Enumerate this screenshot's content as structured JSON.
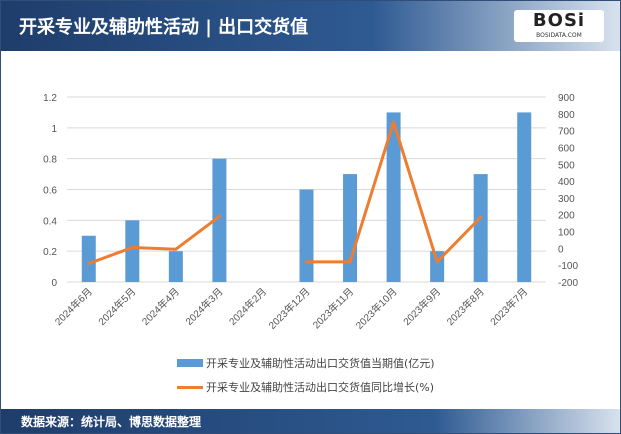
{
  "title": "开采专业及辅助性活动 | 出口交货值",
  "logo": {
    "text": "BOSi",
    "sub": "BOSIDATA.COM"
  },
  "source": "数据来源：统计局、博思数据整理",
  "colors": {
    "bar": "#5b9bd5",
    "line": "#ed7d31",
    "header": "#1f3d6b"
  },
  "chart_data": {
    "type": "bar+line",
    "categories": [
      "2024年6月",
      "2024年5月",
      "2024年4月",
      "2024年3月",
      "2024年2月",
      "2023年12月",
      "2023年11月",
      "2023年10月",
      "2023年9月",
      "2023年8月",
      "2023年7月"
    ],
    "series": [
      {
        "name": "开采专业及辅助性活动出口交货值当期值(亿元)",
        "type": "bar",
        "axis": "left",
        "values": [
          0.3,
          0.4,
          0.2,
          0.8,
          null,
          0.6,
          0.7,
          1.1,
          0.2,
          0.7,
          1.1
        ]
      },
      {
        "name": "开采专业及辅助性活动出口交货值同比增长(%)",
        "type": "line",
        "axis": "right",
        "values": [
          -90,
          5,
          -5,
          190,
          null,
          -80,
          -80,
          750,
          -80,
          185,
          null
        ]
      }
    ],
    "yleft": {
      "lim": [
        0,
        1.2
      ],
      "ticks": [
        "0",
        "0.2",
        "0.4",
        "0.6",
        "0.8",
        "1",
        "1.2"
      ]
    },
    "yright": {
      "lim": [
        -200,
        900
      ],
      "ticks": [
        "-200",
        "-100",
        "0",
        "100",
        "200",
        "300",
        "400",
        "500",
        "600",
        "700",
        "800",
        "900"
      ]
    },
    "grid": true,
    "legend": "bottom"
  }
}
